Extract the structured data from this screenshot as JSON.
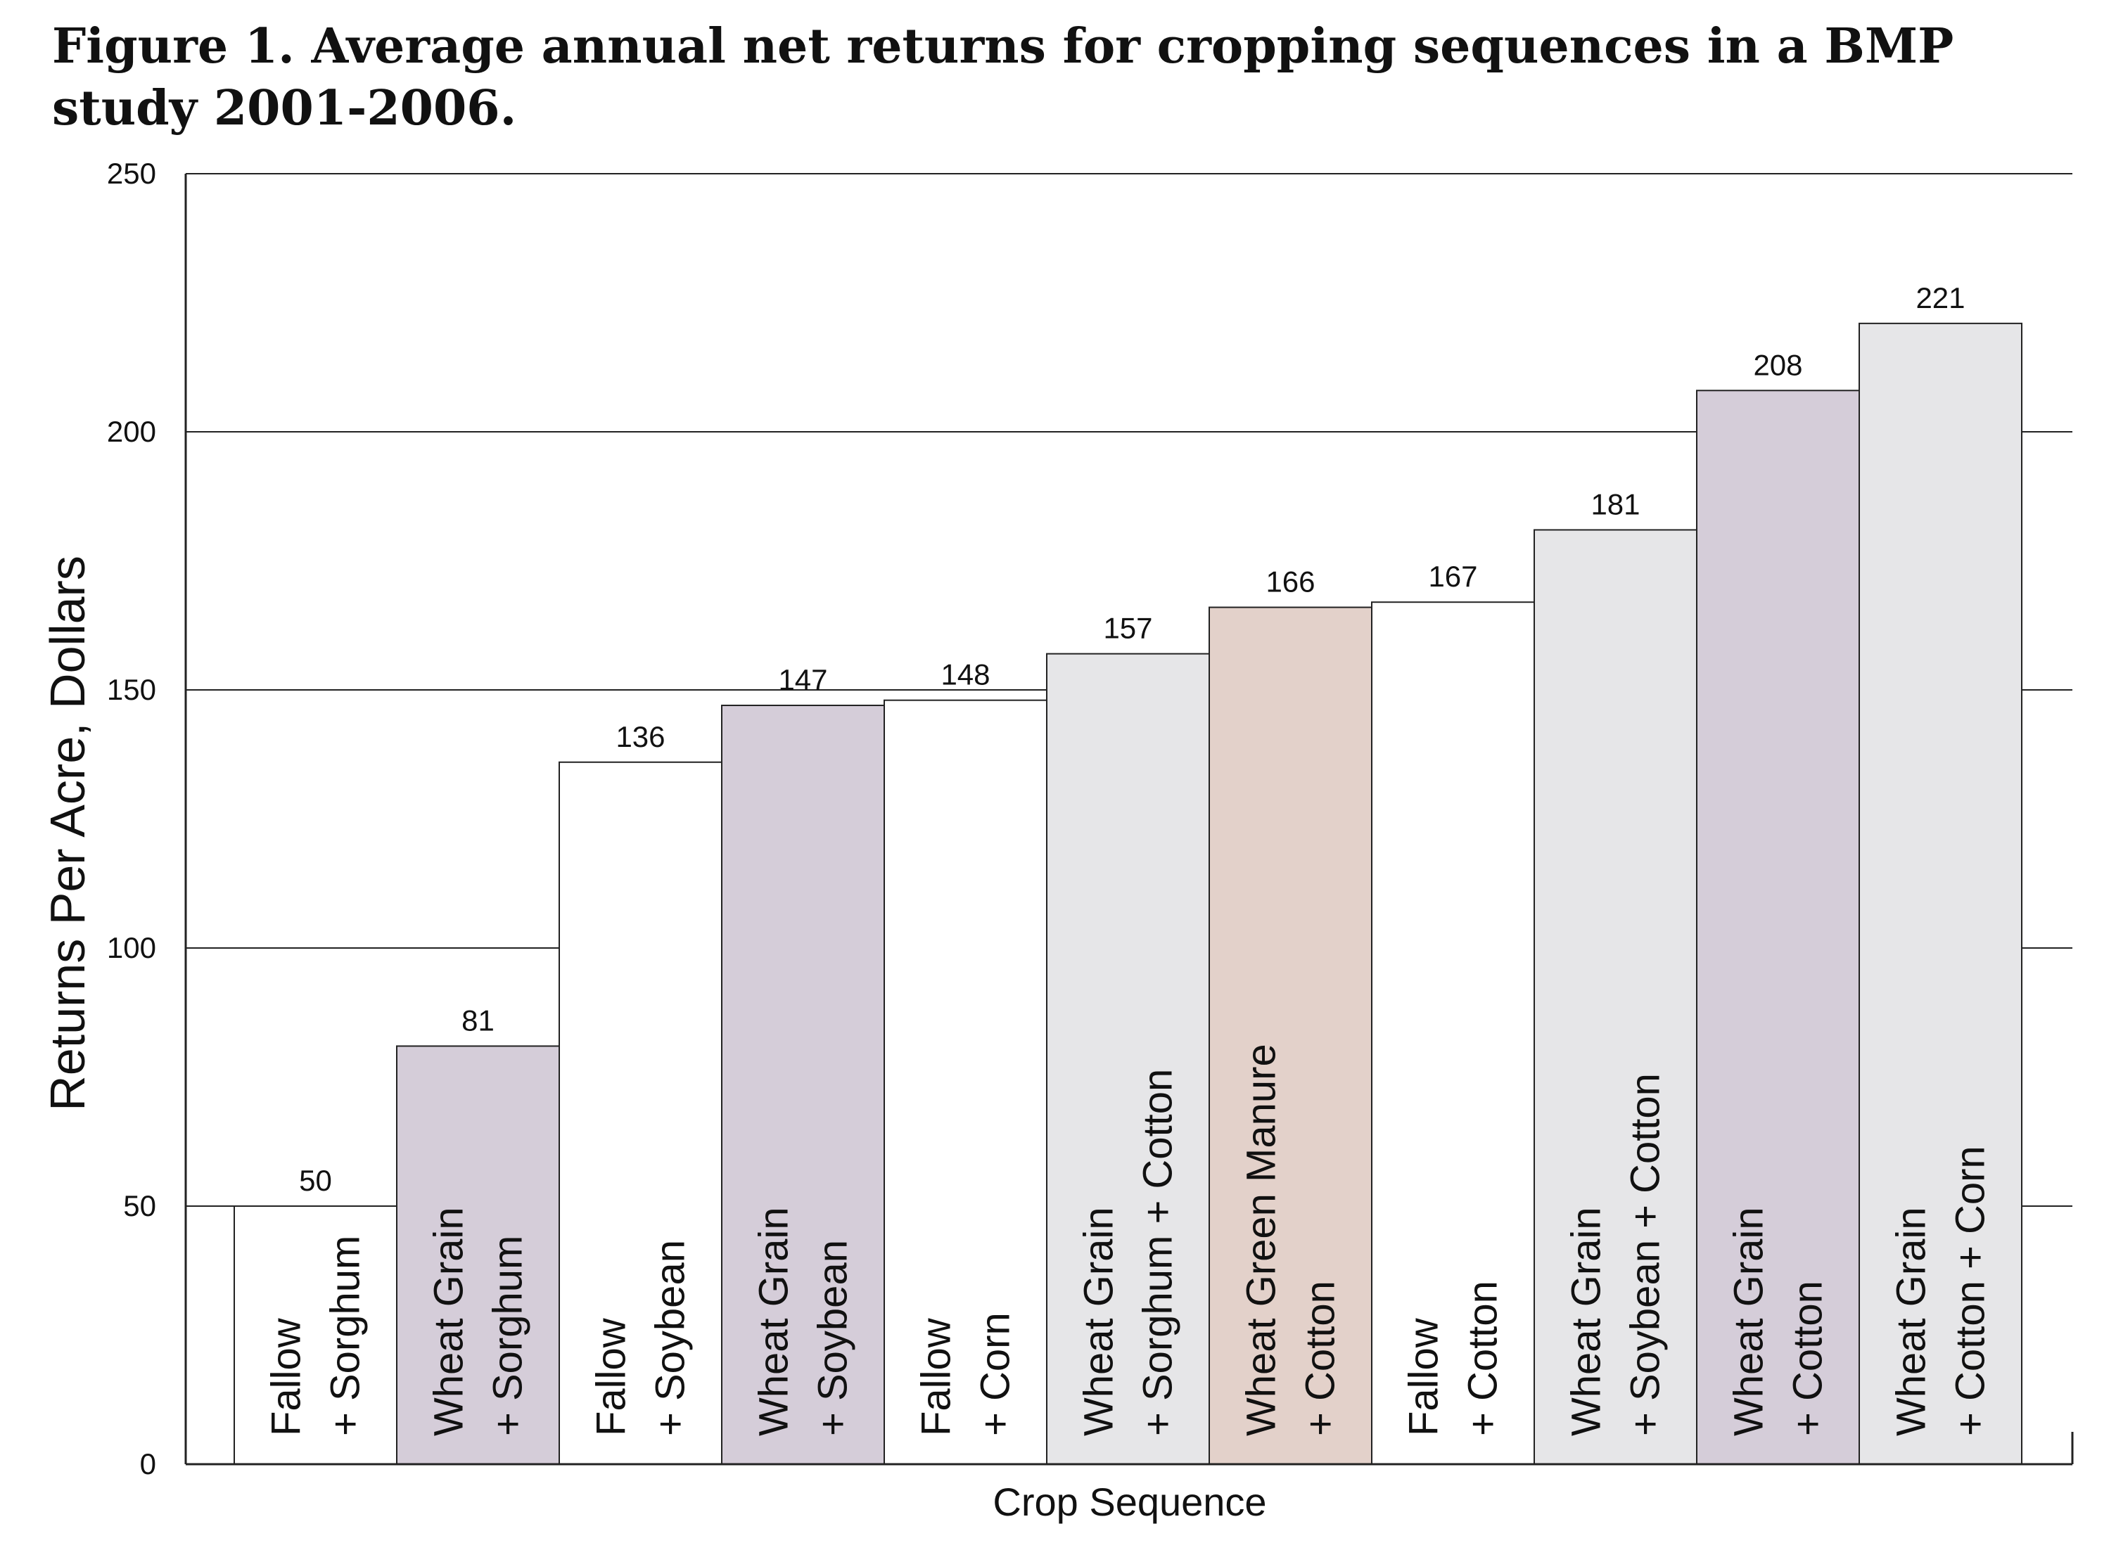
{
  "chart_data": {
    "type": "bar",
    "title": "Figure 1. Average annual net returns for cropping sequences in a BMP study 2001-2006.",
    "xlabel": "Crop Sequence",
    "ylabel": "Returns Per Acre, Dollars",
    "ylim": [
      0,
      250
    ],
    "yticks": [
      "0",
      "50",
      "100",
      "150",
      "200",
      "250"
    ],
    "grid": true,
    "categories": [
      [
        "Fallow",
        "+ Sorghum"
      ],
      [
        "Wheat Grain",
        "+ Sorghum"
      ],
      [
        "Fallow",
        "+ Soybean"
      ],
      [
        "Wheat Grain",
        "+ Soybean"
      ],
      [
        "Fallow",
        "+ Corn"
      ],
      [
        "Wheat Grain",
        "+ Sorghum + Cotton"
      ],
      [
        "Wheat Green Manure",
        "+ Cotton"
      ],
      [
        "Fallow",
        "+ Cotton"
      ],
      [
        "Wheat Grain",
        "+ Soybean + Cotton"
      ],
      [
        "Wheat Grain",
        "+ Cotton"
      ],
      [
        "Wheat Grain",
        "+ Cotton + Corn"
      ]
    ],
    "values": [
      50,
      81,
      136,
      147,
      148,
      157,
      166,
      167,
      181,
      208,
      221
    ],
    "value_labels": [
      "50",
      "81",
      "136",
      "147",
      "148",
      "157",
      "166",
      "167",
      "181",
      "208",
      "221"
    ],
    "bar_colors": [
      "#ffffff",
      "#d5cdd9",
      "#ffffff",
      "#d5cdd9",
      "#ffffff",
      "#e6e6e8",
      "#e3d1ca",
      "#ffffff",
      "#e6e6e8",
      "#d5cdd9",
      "#e6e6e8"
    ]
  }
}
